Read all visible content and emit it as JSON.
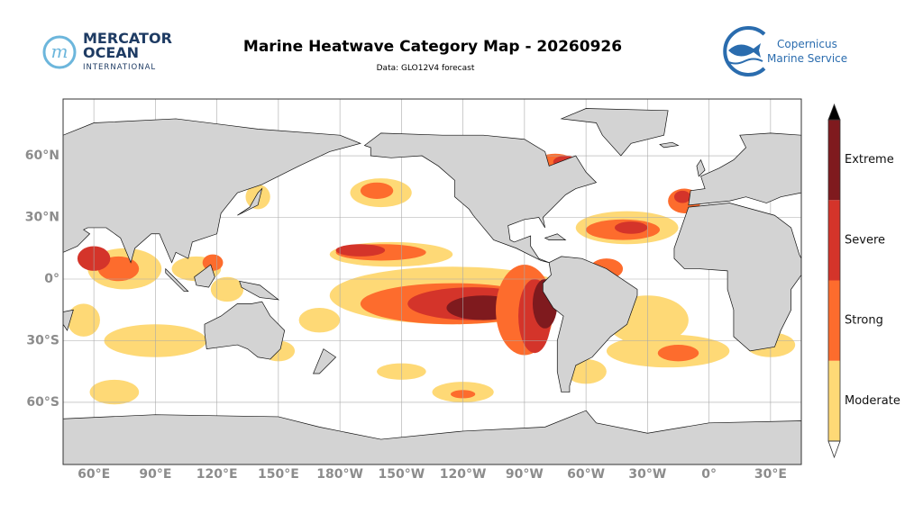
{
  "header": {
    "title": "Marine Heatwave Category Map - 20260926",
    "subtitle": "Data: GLO12V4 forecast"
  },
  "logos": {
    "mercator": [
      "MERCATOR",
      "OCEAN",
      "INTERNATIONAL"
    ],
    "copernicus": [
      "Copernicus",
      "Marine Service"
    ]
  },
  "map": {
    "lat_labels": [
      "60°N",
      "30°N",
      "0°",
      "30°S",
      "60°S"
    ],
    "lon_labels": [
      "60°E",
      "90°E",
      "120°E",
      "150°E",
      "180°W",
      "150°W",
      "120°W",
      "90°W",
      "60°W",
      "30°W",
      "0°",
      "30°E"
    ]
  },
  "legend": {
    "categories": [
      {
        "label": "Moderate",
        "color": "#fed976"
      },
      {
        "label": "Strong",
        "color": "#fd6c2d"
      },
      {
        "label": "Severe",
        "color": "#d4342a"
      },
      {
        "label": "Extreme",
        "color": "#7f1a1e"
      }
    ]
  }
}
